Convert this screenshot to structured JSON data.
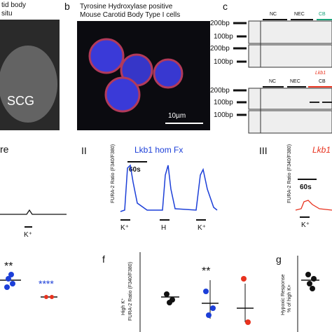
{
  "panel_a": {
    "caption_1": "tid body",
    "caption_2": "situ",
    "region": "SCG"
  },
  "panel_b": {
    "letter": "b",
    "caption_1": "Tyrosine Hydroxylase positive",
    "caption_2": "Mouse Carotid Body Type I cells",
    "scale": "10µm"
  },
  "panel_c": {
    "letter": "c",
    "gel_1": {
      "ladder": [
        "200bp",
        "100bp",
        "200bp",
        "100bp"
      ],
      "lanes": [
        "NC",
        "NEC",
        "CB"
      ]
    },
    "gel_2": {
      "ladder": [
        "200bp",
        "100bp",
        "100bp"
      ],
      "lanes": [
        "NC",
        "NEC",
        "Lkb1",
        "CB"
      ]
    }
  },
  "panel_d": {
    "trace_1": {
      "label": "re",
      "stimulus": "K⁺"
    },
    "trace_2": {
      "numeral": "II",
      "title": "Lkb1 hom Fx",
      "scale": "60s",
      "ylabel": "FURA-2 Ratio (F340/F380)",
      "stimuli": [
        "K⁺",
        "H",
        "K⁺"
      ]
    },
    "trace_3": {
      "numeral": "III",
      "title": "Lkb1",
      "scale": "60s",
      "ylabel": "FURA-2 Ratio (F340/F380)",
      "stimulus": "K⁺"
    }
  },
  "panel_e": {
    "sig_1": "**",
    "sig_2": "****"
  },
  "panel_f": {
    "letter": "f",
    "ylabel_1": "High K⁺",
    "ylabel_2": "FURA-2 Ratio (F340/F380)",
    "sig": "**"
  },
  "panel_g": {
    "letter": "g",
    "ylabel_1": "Hypoxic Response",
    "ylabel_2": "% of high K+"
  }
}
